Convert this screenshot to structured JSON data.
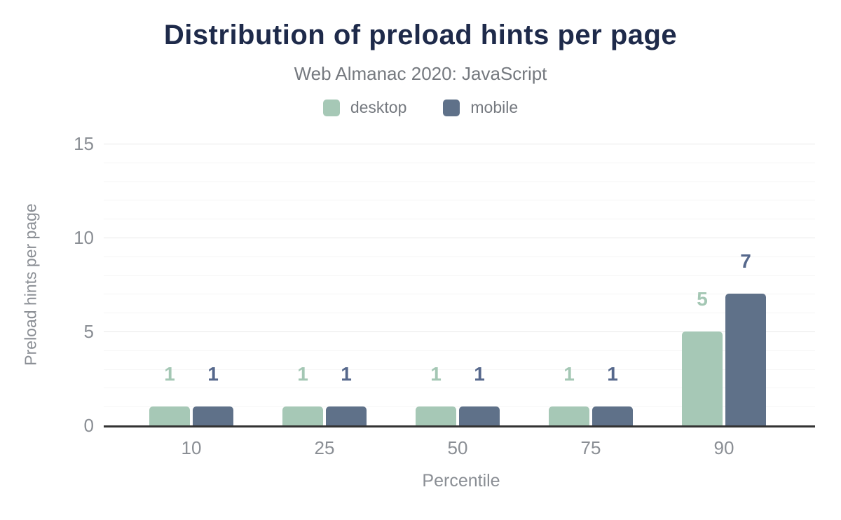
{
  "chart_data": {
    "type": "bar",
    "title": "Distribution of preload hints per page",
    "subtitle": "Web Almanac 2020: JavaScript",
    "xlabel": "Percentile",
    "ylabel": "Preload hints per page",
    "categories": [
      "10",
      "25",
      "50",
      "75",
      "90"
    ],
    "series": [
      {
        "name": "desktop",
        "values": [
          1,
          1,
          1,
          1,
          5
        ],
        "color": "#a6c8b6",
        "label_color": "#a4c7b4"
      },
      {
        "name": "mobile",
        "values": [
          1,
          1,
          1,
          1,
          7
        ],
        "color": "#5f7189",
        "label_color": "#56688c"
      }
    ],
    "ylim": [
      0,
      15
    ],
    "y_ticks": [
      0,
      5,
      10,
      15
    ],
    "y_minor_step": 1,
    "grid": "horizontal",
    "legend_position": "top",
    "value_labels": true
  },
  "colors": {
    "title": "#1e2a4a",
    "subtitle": "#75797f",
    "axis_text": "#8a8e94",
    "axis_line": "#333333",
    "grid_major": "#e9e9e9",
    "grid_minor": "#f5f5f5",
    "background": "#ffffff"
  }
}
